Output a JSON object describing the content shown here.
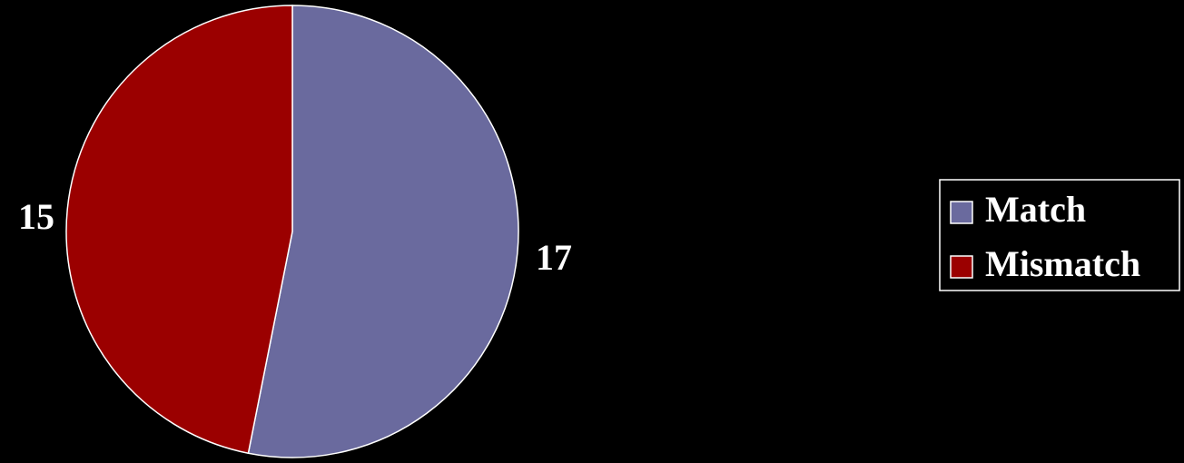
{
  "chart_data": {
    "type": "pie",
    "categories": [
      "Match",
      "Mismatch"
    ],
    "values": [
      17,
      15
    ],
    "data_labels": [
      "17",
      "15"
    ],
    "colors": [
      "#6a6a9e",
      "#9b0000"
    ],
    "slice_border_color": "#ffffff",
    "background_color": "#000000",
    "start_angle": "12 o'clock",
    "direction": "clockwise",
    "legend": {
      "placement": "right",
      "entries": [
        "Match",
        "Mismatch"
      ],
      "border_color": "#ffffff",
      "text_color": "#ffffff"
    },
    "label_color": "#ffffff"
  }
}
